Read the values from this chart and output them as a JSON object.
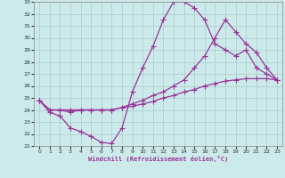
{
  "xlabel": "Windchill (Refroidissement éolien,°C)",
  "bg_color": "#cceaea",
  "grid_color": "#aacccc",
  "line_color": "#993399",
  "xlim": [
    -0.5,
    23.5
  ],
  "ylim": [
    21,
    33
  ],
  "xticks": [
    0,
    1,
    2,
    3,
    4,
    5,
    6,
    7,
    8,
    9,
    10,
    11,
    12,
    13,
    14,
    15,
    16,
    17,
    18,
    19,
    20,
    21,
    22,
    23
  ],
  "yticks": [
    21,
    22,
    23,
    24,
    25,
    26,
    27,
    28,
    29,
    30,
    31,
    32,
    33
  ],
  "series1_x": [
    0,
    1,
    2,
    3,
    4,
    5,
    6,
    7,
    8,
    9,
    10,
    11,
    12,
    13,
    14,
    15,
    16,
    17,
    18,
    19,
    20,
    21,
    22,
    23
  ],
  "series1_y": [
    24.8,
    23.8,
    23.5,
    22.5,
    22.2,
    21.8,
    21.3,
    21.2,
    22.5,
    25.5,
    27.5,
    29.3,
    31.5,
    33.0,
    33.0,
    32.5,
    31.5,
    29.5,
    29.0,
    28.5,
    29.0,
    27.5,
    27.0,
    26.5
  ],
  "series2_x": [
    0,
    1,
    2,
    3,
    4,
    5,
    6,
    7,
    8,
    9,
    10,
    11,
    12,
    13,
    14,
    15,
    16,
    17,
    18,
    19,
    20,
    21,
    22,
    23
  ],
  "series2_y": [
    24.8,
    24.0,
    24.0,
    23.8,
    24.0,
    24.0,
    24.0,
    24.0,
    24.2,
    24.5,
    24.8,
    25.2,
    25.5,
    26.0,
    26.5,
    27.5,
    28.5,
    30.0,
    31.5,
    30.5,
    29.5,
    28.8,
    27.5,
    26.5
  ],
  "series3_x": [
    0,
    1,
    2,
    3,
    4,
    5,
    6,
    7,
    8,
    9,
    10,
    11,
    12,
    13,
    14,
    15,
    16,
    17,
    18,
    19,
    20,
    21,
    22,
    23
  ],
  "series3_y": [
    24.8,
    24.0,
    24.0,
    24.0,
    24.0,
    24.0,
    24.0,
    24.0,
    24.2,
    24.3,
    24.5,
    24.7,
    25.0,
    25.2,
    25.5,
    25.7,
    26.0,
    26.2,
    26.4,
    26.5,
    26.6,
    26.6,
    26.6,
    26.5
  ]
}
